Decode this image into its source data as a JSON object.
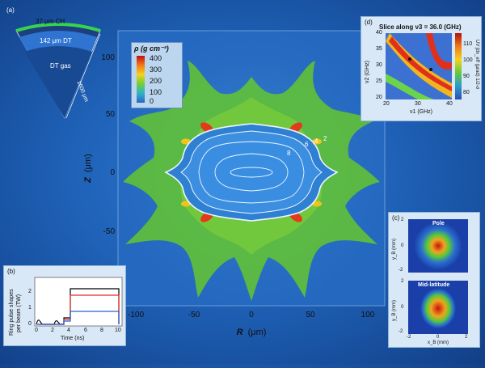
{
  "colors": {
    "background": "#1f62b8",
    "inset_bg": "#d9e8f7"
  },
  "main": {
    "xlabel_var": "R",
    "xlabel_unit": "(μm)",
    "ylabel_var": "Z",
    "ylabel_unit": "(μm)",
    "xticks": [
      "-100",
      "-50",
      "0",
      "50",
      "100"
    ],
    "yticks": [
      "100",
      "50",
      "0",
      "-50"
    ],
    "contour_labels": [
      "8",
      "6",
      "4",
      "2"
    ],
    "colorbar": {
      "title": "ρ (g cm⁻³)",
      "ticks": [
        "400",
        "300",
        "200",
        "100",
        "0"
      ]
    }
  },
  "panel_a": {
    "tag": "(a)",
    "outer_layer": "37 μm CH",
    "middle_layer": "142 μm DT",
    "core": "DT gas",
    "radius": "1600 μm"
  },
  "panel_b": {
    "tag": "(b)",
    "ylabel_line1": "Ring pulse shapes",
    "ylabel_line2": "per beam (TW)",
    "xlabel": "Time (ns)",
    "xticks": [
      "0",
      "2",
      "4",
      "6",
      "8",
      "10"
    ],
    "yticks": [
      "0",
      "1",
      "2"
    ]
  },
  "panel_c": {
    "tag": "(c)",
    "top_title": "Pole",
    "bottom_title": "Mid-latitude",
    "ylabel": "y_B (mm)",
    "xlabel": "x_B (mm)",
    "yticks": [
      "2",
      "1",
      "0",
      "-1",
      "-2"
    ],
    "xticks": [
      "-2",
      "-1",
      "0",
      "1",
      "2"
    ]
  },
  "panel_d": {
    "tag": "(d)",
    "title": "Slice along ν3 = 36.0 (GHz)",
    "ylabel": "ν2 (GHz)",
    "xlabel": "ν1 (GHz)",
    "colorbar_label": "UV ∫dν_eff (µrad) 1/2-σ",
    "yticks": [
      "40",
      "35",
      "30",
      "25",
      "20"
    ],
    "xticks": [
      "20",
      "30",
      "40"
    ],
    "cbar_ticks": [
      "110",
      "100",
      "90",
      "80"
    ]
  }
}
